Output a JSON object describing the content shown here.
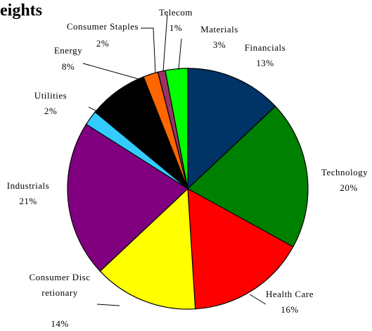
{
  "chart_data": {
    "type": "pie",
    "title": "eights",
    "categories": [
      "Financials",
      "Technology",
      "Health Care",
      "Consumer Discretionary",
      "Industrials",
      "Utilities",
      "Energy",
      "Consumer Staples",
      "Telecom",
      "Materials"
    ],
    "values": [
      13,
      20,
      16,
      14,
      21,
      2,
      8,
      2,
      1,
      3
    ],
    "value_labels": [
      "13%",
      "20%",
      "16%",
      "14%",
      "21%",
      "2%",
      "8%",
      "2%",
      "1%",
      "3%"
    ],
    "colors": [
      "#003366",
      "#008000",
      "#ff0000",
      "#ffff00",
      "#800080",
      "#33ccff",
      "#000000",
      "#ff6600",
      "#993366",
      "#00ff00"
    ]
  }
}
